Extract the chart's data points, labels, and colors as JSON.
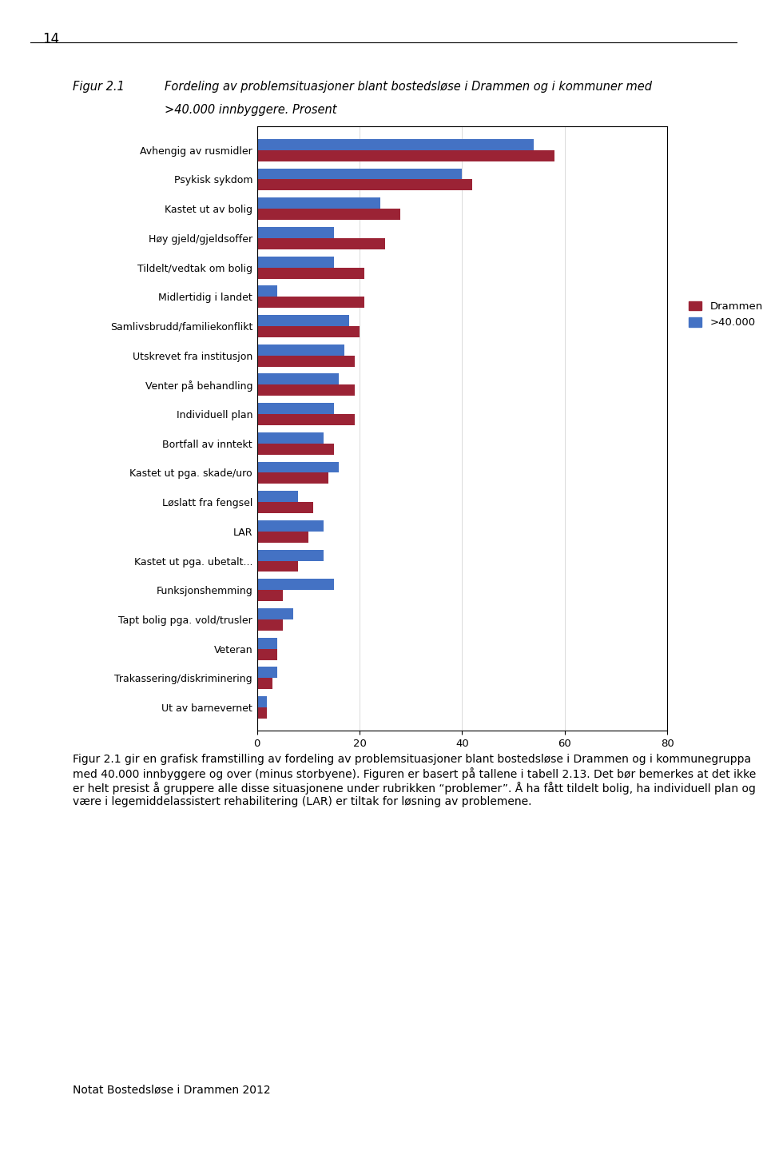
{
  "categories": [
    "Avhengig av rusmidler",
    "Psykisk sykdom",
    "Kastet ut av bolig",
    "Høy gjeld/gjeldsoffer",
    "Tildelt/vedtak om bolig",
    "Midlertidig i landet",
    "Samlivsbrudd/familiekonflikt",
    "Utskrevet fra institusjon",
    "Venter på behandling",
    "Individuell plan",
    "Bortfall av inntekt",
    "Kastet ut pga. skade/uro",
    "Løslatt fra fengsel",
    "LAR",
    "Kastet ut pga. ubetalt...",
    "Funksjonshemming",
    "Tapt bolig pga. vold/trusler",
    "Veteran",
    "Trakassering/diskriminering",
    "Ut av barnevernet"
  ],
  "drammen": [
    58,
    42,
    28,
    25,
    21,
    21,
    20,
    19,
    19,
    19,
    15,
    14,
    11,
    10,
    8,
    5,
    5,
    4,
    3,
    2
  ],
  "over40k": [
    54,
    40,
    24,
    15,
    15,
    4,
    18,
    17,
    16,
    15,
    13,
    16,
    8,
    13,
    13,
    15,
    7,
    4,
    4,
    2
  ],
  "drammen_color": "#9B2335",
  "over40k_color": "#4472C4",
  "legend_drammen": "Drammen",
  "legend_over40k": ">40.000",
  "xlim": [
    0,
    80
  ],
  "xticks": [
    0,
    20,
    40,
    60,
    80
  ],
  "title_figure": "Figur 2.1",
  "title_main": "Fordeling av problemsituasjoner blant bostedsløse i Drammen og i kommuner med",
  "title_sub": ">40.000 innbyggere. Prosent",
  "footer_text": "Notat Bostedsløse i Drammen 2012",
  "body_text": "Figur 2.1 gir en grafisk framstilling av fordeling av problemsituasjoner blant bostedsløse i Drammen og i kommunegruppa med 40.000 innbyggere og over (minus storbyene). Figuren er basert på tallene i tabell 2.13. Det bør bemerkes at det ikke er helt presist å gruppere alle disse situasjonene under rubrikken “problemer”. Å ha fått tildelt bolig, ha individuell plan og være i legemiddelassistert rehabilitering (LAR) er tiltak for løsning av problemene."
}
